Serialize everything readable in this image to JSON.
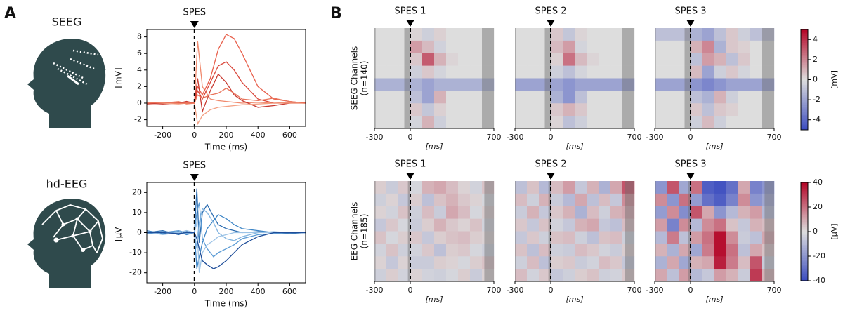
{
  "panel_labels": [
    "A",
    "B"
  ],
  "icon_labels": [
    "SEEG",
    "hd-EEG"
  ],
  "chart_data": [
    {
      "type": "line",
      "title": "SPES",
      "marker_x": 0,
      "xlabel": "Time (ms)",
      "ylabel": "[mV]",
      "xlim": [
        -300,
        700
      ],
      "ylim": [
        -2.8,
        8.9
      ],
      "xticks": [
        -200,
        0,
        200,
        400,
        600
      ],
      "yticks": [
        -2,
        0,
        2,
        4,
        6,
        8
      ],
      "x": [
        -300,
        -200,
        -100,
        -50,
        0,
        20,
        50,
        100,
        150,
        200,
        250,
        300,
        400,
        500,
        600,
        700
      ],
      "series": [
        {
          "color": "#f08a6e",
          "values": [
            0.1,
            0,
            0.2,
            -0.1,
            0,
            7.5,
            2,
            0.5,
            0.3,
            0.2,
            0.1,
            0,
            0.1,
            0,
            0.1,
            0
          ]
        },
        {
          "color": "#e8604c",
          "values": [
            0,
            0.1,
            0,
            0.1,
            0,
            2,
            1,
            3,
            6.5,
            8.3,
            7.8,
            6,
            2,
            0.5,
            0.2,
            0
          ]
        },
        {
          "color": "#d9463a",
          "values": [
            -0.1,
            0,
            0.1,
            0,
            0,
            1.5,
            0.5,
            2.5,
            4.5,
            5,
            4,
            2.5,
            0.5,
            0,
            0,
            0.1
          ]
        },
        {
          "color": "#c8382f",
          "values": [
            0,
            -0.1,
            0,
            0.2,
            0,
            3,
            -1,
            1.5,
            3.5,
            2.5,
            1,
            0.3,
            -0.5,
            -0.3,
            0,
            0
          ]
        },
        {
          "color": "#f4a083",
          "values": [
            0.1,
            0,
            -0.1,
            0,
            0,
            -2.5,
            -1.5,
            -0.8,
            -0.5,
            -0.4,
            -0.3,
            -0.2,
            -0.1,
            0,
            0,
            0
          ]
        },
        {
          "color": "#e9735a",
          "values": [
            0,
            0.1,
            0,
            0,
            0,
            1,
            0.6,
            1,
            1.2,
            1.8,
            1.2,
            0.5,
            0.3,
            0.6,
            0.2,
            0
          ]
        }
      ]
    },
    {
      "type": "line",
      "title": "SPES",
      "marker_x": 0,
      "xlabel": "Time (ms)",
      "ylabel": "[µV]",
      "xlim": [
        -300,
        700
      ],
      "ylim": [
        -25,
        25
      ],
      "xticks": [
        -200,
        0,
        200,
        400,
        600
      ],
      "yticks": [
        -20,
        -10,
        0,
        10,
        20
      ],
      "x": [
        -300,
        -200,
        -100,
        -50,
        0,
        15,
        30,
        50,
        80,
        120,
        150,
        200,
        250,
        300,
        400,
        500,
        600,
        700
      ],
      "series": [
        {
          "color": "#2b6cb0",
          "values": [
            0,
            1,
            -1,
            0.5,
            0,
            22,
            -5,
            10,
            14,
            8,
            4,
            2,
            1,
            0,
            0.5,
            0,
            -0.5,
            0
          ]
        },
        {
          "color": "#3d85c6",
          "values": [
            1,
            -0.5,
            0.5,
            -1,
            0,
            -18,
            -12,
            -5,
            2,
            6,
            9,
            7,
            4,
            2,
            1,
            0,
            0,
            0
          ]
        },
        {
          "color": "#5b9bd5",
          "values": [
            -0.5,
            0,
            1,
            0,
            0,
            10,
            15,
            -3,
            -8,
            -12,
            -10,
            -8,
            -6,
            -3,
            -1,
            -0.5,
            0,
            0
          ]
        },
        {
          "color": "#7fb3e0",
          "values": [
            0,
            0.5,
            0,
            -0.5,
            0,
            -8,
            5,
            12,
            10,
            5,
            0,
            -3,
            -4,
            -2,
            0,
            0.5,
            0,
            0
          ]
        },
        {
          "color": "#9cc3e6",
          "values": [
            0.5,
            -1,
            0,
            1,
            0,
            5,
            -20,
            -10,
            -6,
            -4,
            -2,
            -1,
            0,
            0,
            0,
            0,
            0,
            0
          ]
        },
        {
          "color": "#1f4e99",
          "values": [
            0,
            0,
            -0.5,
            0,
            0,
            -3,
            -8,
            -14,
            -16,
            -18,
            -17,
            -14,
            -10,
            -6,
            -2,
            0,
            0,
            0
          ]
        }
      ]
    },
    {
      "type": "heatmap",
      "title": "SPES 1",
      "marker_x": 0,
      "xlabel": "[ms]",
      "ylabel": [
        "SEEG Channels",
        "(n=140)"
      ],
      "xlim": [
        -300,
        700
      ],
      "xticks": [
        -300,
        0,
        700
      ],
      "clim": [
        -5,
        5
      ],
      "colormap": [
        "#3b4cc0",
        "#dddddd",
        "#b40426"
      ],
      "masked": [
        [
          -300,
          -290
        ],
        [
          -50,
          0
        ],
        [
          600,
          700
        ]
      ],
      "z": [
        [
          0,
          0,
          0,
          0.2,
          -0.5,
          0.3,
          0,
          0,
          0,
          0
        ],
        [
          0,
          0,
          0,
          1.5,
          0.8,
          -0.4,
          0,
          0,
          0,
          0
        ],
        [
          0,
          0,
          0,
          0.5,
          3,
          1,
          0.2,
          0,
          0,
          0
        ],
        [
          0,
          0,
          0,
          -0.5,
          0.5,
          -0.3,
          0,
          0,
          0,
          0
        ],
        [
          -1.5,
          -1.5,
          -1.5,
          -1.5,
          -2,
          -1.5,
          -1.5,
          -1.5,
          -1.5,
          -1.5
        ],
        [
          0,
          0,
          0,
          -1,
          -2,
          1,
          0,
          0,
          0,
          0
        ],
        [
          0,
          0,
          0,
          0.5,
          -0.8,
          0.3,
          0,
          0,
          0,
          0
        ],
        [
          0,
          0,
          0,
          -0.3,
          1,
          -0.5,
          0,
          0,
          0,
          0
        ]
      ]
    },
    {
      "type": "heatmap",
      "title": "SPES 2",
      "marker_x": 0,
      "xlabel": "[ms]",
      "xlim": [
        -300,
        700
      ],
      "xticks": [
        -300,
        0,
        700
      ],
      "clim": [
        -5,
        5
      ],
      "colormap": [
        "#3b4cc0",
        "#dddddd",
        "#b40426"
      ],
      "masked": [
        [
          -300,
          -290
        ],
        [
          -50,
          0
        ],
        [
          600,
          700
        ]
      ],
      "z": [
        [
          0,
          0,
          0,
          0.5,
          -0.8,
          0.2,
          0,
          0,
          0,
          0
        ],
        [
          0,
          0,
          0,
          0.8,
          1.5,
          -0.3,
          0,
          0,
          0,
          0
        ],
        [
          0,
          0,
          0,
          0.3,
          2.5,
          0.8,
          0.2,
          0,
          0,
          0
        ],
        [
          0,
          0,
          0,
          -0.5,
          -1,
          -0.3,
          0,
          0,
          0,
          0
        ],
        [
          -2,
          -2,
          -2,
          -2,
          -2.5,
          -2,
          -2,
          -2,
          -2,
          -2
        ],
        [
          0,
          0,
          0,
          -1.5,
          -2.5,
          -1,
          0,
          0,
          0,
          0
        ],
        [
          0,
          0,
          0,
          0.5,
          1,
          0.5,
          0,
          0,
          0,
          0
        ],
        [
          0,
          0,
          0,
          0.2,
          -1,
          -0.5,
          0,
          0,
          0,
          0
        ]
      ]
    },
    {
      "type": "heatmap",
      "title": "SPES 3",
      "marker_x": 0,
      "xlabel": "[ms]",
      "xlim": [
        -300,
        700
      ],
      "xticks": [
        -300,
        0,
        700
      ],
      "clim": [
        -5,
        5
      ],
      "colormap": [
        "#3b4cc0",
        "#dddddd",
        "#b40426"
      ],
      "masked": [
        [
          -300,
          -290
        ],
        [
          -50,
          0
        ],
        [
          600,
          700
        ]
      ],
      "z": [
        [
          -1,
          -1,
          -1,
          -1.5,
          -2,
          -1,
          0.5,
          -0.5,
          -1,
          -1
        ],
        [
          0,
          0,
          0,
          1,
          2,
          -1.5,
          0.5,
          0.3,
          0,
          0
        ],
        [
          0,
          0,
          0,
          -1,
          1.5,
          1,
          -1,
          0.5,
          0,
          0
        ],
        [
          0,
          0,
          0,
          0.8,
          -2,
          -0.5,
          0.5,
          -0.3,
          0,
          0
        ],
        [
          -2,
          -2,
          -2,
          -2.5,
          -3,
          -2.5,
          -2,
          -2,
          -2,
          -2
        ],
        [
          0,
          0,
          0,
          -1,
          -1.5,
          1,
          -0.5,
          0,
          0,
          0
        ],
        [
          0,
          0,
          0,
          0.5,
          -1,
          0.5,
          0.3,
          0,
          0,
          0
        ],
        [
          0,
          0,
          0,
          -0.5,
          0.8,
          -0.5,
          0,
          0,
          0,
          0
        ]
      ]
    },
    {
      "type": "heatmap",
      "title": "SPES 1",
      "marker_x": 0,
      "xlabel": "[ms]",
      "ylabel": [
        "EEG Channels",
        "(n=185)"
      ],
      "xlim": [
        -300,
        700
      ],
      "xticks": [
        -300,
        0,
        700
      ],
      "clim": [
        -40,
        40
      ],
      "colormap": [
        "#3b4cc0",
        "#dddddd",
        "#b40426"
      ],
      "masked": [
        [
          -300,
          -290
        ],
        [
          -20,
          0
        ],
        [
          620,
          700
        ]
      ],
      "z": [
        [
          3,
          -5,
          4,
          -2,
          8,
          10,
          6,
          2,
          -3,
          5
        ],
        [
          -4,
          2,
          -6,
          3,
          -8,
          5,
          8,
          4,
          2,
          -2
        ],
        [
          2,
          -3,
          5,
          -4,
          6,
          -5,
          10,
          6,
          -2,
          3
        ],
        [
          -6,
          4,
          -2,
          -5,
          3,
          8,
          4,
          2,
          5,
          -3
        ],
        [
          5,
          -2,
          3,
          4,
          -6,
          3,
          5,
          6,
          3,
          2
        ],
        [
          -3,
          5,
          -4,
          -3,
          4,
          -8,
          3,
          4,
          -2,
          -4
        ],
        [
          2,
          -6,
          2,
          -5,
          -5,
          3,
          2,
          -2,
          3,
          5
        ],
        [
          -4,
          3,
          -3,
          2,
          -3,
          -4,
          -2,
          3,
          -5,
          2
        ]
      ]
    },
    {
      "type": "heatmap",
      "title": "SPES 2",
      "marker_x": 0,
      "xlabel": "[ms]",
      "xlim": [
        -300,
        700
      ],
      "xticks": [
        -300,
        0,
        700
      ],
      "clim": [
        -40,
        40
      ],
      "colormap": [
        "#3b4cc0",
        "#dddddd",
        "#b40426"
      ],
      "masked": [
        [
          -300,
          -290
        ],
        [
          -20,
          0
        ],
        [
          620,
          700
        ]
      ],
      "z": [
        [
          -8,
          5,
          -10,
          6,
          12,
          -6,
          8,
          -12,
          10,
          25
        ],
        [
          6,
          -4,
          8,
          -5,
          -10,
          10,
          -8,
          6,
          -6,
          15
        ],
        [
          -5,
          8,
          -6,
          4,
          8,
          -12,
          6,
          -4,
          8,
          10
        ],
        [
          4,
          -6,
          5,
          -3,
          -6,
          8,
          10,
          -6,
          -8,
          6
        ],
        [
          -6,
          4,
          -4,
          5,
          6,
          -4,
          -8,
          5,
          6,
          -4
        ],
        [
          5,
          -8,
          6,
          -4,
          -5,
          6,
          4,
          -3,
          -5,
          3
        ],
        [
          -4,
          6,
          -8,
          3,
          4,
          -5,
          -3,
          6,
          4,
          -6
        ],
        [
          6,
          -3,
          4,
          -6,
          -4,
          3,
          5,
          -4,
          -3,
          4
        ]
      ]
    },
    {
      "type": "heatmap",
      "title": "SPES 3",
      "marker_x": 0,
      "xlabel": "[ms]",
      "xlim": [
        -300,
        700
      ],
      "xticks": [
        -300,
        0,
        700
      ],
      "clim": [
        -40,
        40
      ],
      "colormap": [
        "#3b4cc0",
        "#dddddd",
        "#b40426"
      ],
      "masked": [
        [
          -300,
          -290
        ],
        [
          -20,
          0
        ],
        [
          620,
          700
        ]
      ],
      "z": [
        [
          -20,
          25,
          -15,
          20,
          -35,
          -38,
          -30,
          10,
          -25,
          -20
        ],
        [
          15,
          -20,
          20,
          -18,
          -30,
          -35,
          -25,
          15,
          -20,
          -15
        ],
        [
          -18,
          15,
          -22,
          25,
          10,
          -20,
          -10,
          8,
          12,
          -10
        ],
        [
          12,
          -25,
          15,
          -10,
          15,
          20,
          5,
          -6,
          8,
          6
        ],
        [
          -10,
          18,
          -8,
          12,
          20,
          38,
          15,
          -5,
          -8,
          10
        ],
        [
          8,
          -12,
          10,
          -15,
          18,
          38,
          20,
          -8,
          10,
          5
        ],
        [
          -12,
          10,
          -15,
          8,
          10,
          35,
          18,
          6,
          25,
          -5
        ],
        [
          10,
          -8,
          12,
          -10,
          -6,
          12,
          8,
          -5,
          30,
          8
        ]
      ]
    },
    {
      "type": "colorbar",
      "ylabel": "[mV]",
      "ylim": [
        -5,
        5
      ],
      "yticks": [
        -4,
        -2,
        0,
        2,
        4
      ],
      "colormap": [
        "#3b4cc0",
        "#dddddd",
        "#b40426"
      ]
    },
    {
      "type": "colorbar",
      "ylabel": "[µV]",
      "ylim": [
        -40,
        40
      ],
      "yticks": [
        -40,
        -20,
        0,
        20,
        40
      ],
      "colormap": [
        "#3b4cc0",
        "#dddddd",
        "#b40426"
      ]
    }
  ]
}
